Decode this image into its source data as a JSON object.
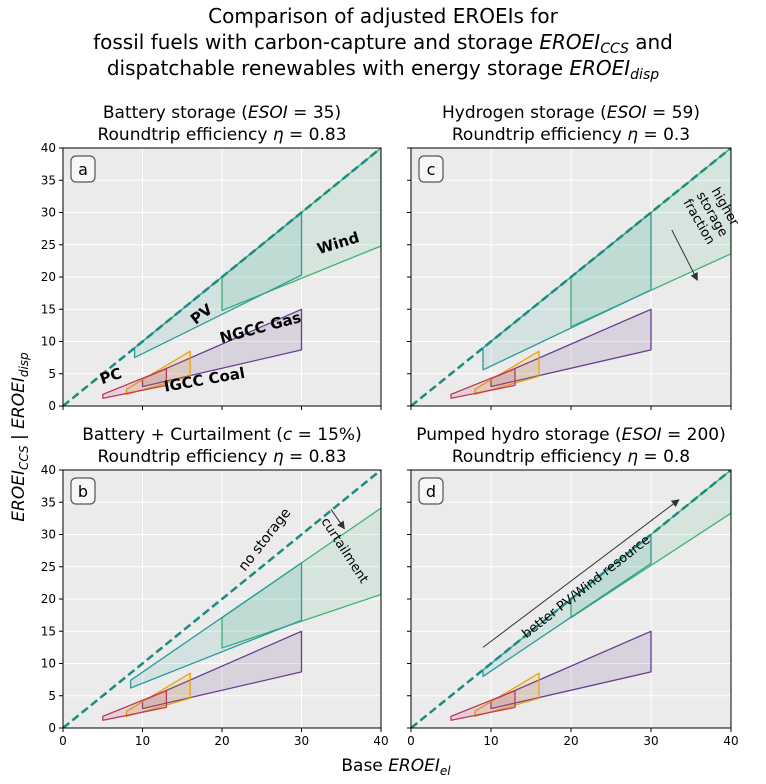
{
  "figure": {
    "title_lines": [
      "Comparison of adjusted EROEIs for",
      "fossil fuels with carbon-capture and storage EROEI_CCS and",
      "dispatchable renewables with energy storage EROEI_disp"
    ],
    "xlabel": "Base EROEI_el",
    "ylabel": "EROEI_CCS | EROEI_disp"
  },
  "colors": {
    "panel_bg": "#ebebeb",
    "grid": "#ffffff",
    "diagonal": "#1a8c80",
    "pv": "#2b9a9e",
    "wind": "#3cb371",
    "wind_label": "#1db34a",
    "ngcc": "#6a3d8f",
    "igcc": "#e8a317",
    "pc": "#c0395a",
    "pc_label": "#d95f0e"
  },
  "chart_data": [
    {
      "type": "area",
      "panel": "a",
      "title_line1": "Battery storage (ESOI = 35)",
      "title_line2": "Roundtrip efficiency η = 0.83",
      "xlim": [
        0,
        40
      ],
      "ylim": [
        0,
        40
      ],
      "xticks": [
        0,
        10,
        20,
        30,
        40
      ],
      "yticks": [
        0,
        5,
        10,
        15,
        20,
        25,
        30,
        35,
        40
      ],
      "regions": {
        "pv": [
          [
            9,
            9
          ],
          [
            30,
            30
          ],
          [
            30,
            20.3
          ],
          [
            9,
            7.5
          ]
        ],
        "wind": [
          [
            20,
            20
          ],
          [
            40,
            40
          ],
          [
            40,
            24.8
          ],
          [
            20,
            14.8
          ]
        ],
        "ngcc": [
          [
            10,
            4.2
          ],
          [
            30,
            15
          ],
          [
            30,
            8.7
          ],
          [
            10,
            3
          ]
        ],
        "igcc": [
          [
            8,
            2.6
          ],
          [
            16,
            8.5
          ],
          [
            16,
            4.6
          ],
          [
            8,
            1.8
          ]
        ],
        "pc": [
          [
            5,
            1.8
          ],
          [
            13,
            5.8
          ],
          [
            13,
            3.2
          ],
          [
            5,
            1.2
          ]
        ]
      },
      "labels": [
        {
          "text": "PV",
          "series": "pv"
        },
        {
          "text": "Wind",
          "series": "wind"
        },
        {
          "text": "NGCC Gas",
          "series": "ngcc"
        },
        {
          "text": "IGCC Coal",
          "series": "igcc"
        },
        {
          "text": "PC",
          "series": "pc"
        }
      ]
    },
    {
      "type": "area",
      "panel": "c",
      "title_line1": "Hydrogen storage (ESOI = 59)",
      "title_line2": "Roundtrip efficiency η = 0.3",
      "xlim": [
        0,
        40
      ],
      "ylim": [
        0,
        40
      ],
      "xticks": [
        0,
        10,
        20,
        30,
        40
      ],
      "yticks": [
        0,
        5,
        10,
        15,
        20,
        25,
        30,
        35,
        40
      ],
      "regions": {
        "pv": [
          [
            9,
            9
          ],
          [
            30,
            30
          ],
          [
            30,
            18
          ],
          [
            9,
            5.6
          ]
        ],
        "wind": [
          [
            20,
            20
          ],
          [
            40,
            40
          ],
          [
            40,
            23.6
          ],
          [
            20,
            12.3
          ]
        ],
        "ngcc": [
          [
            10,
            4.2
          ],
          [
            30,
            15
          ],
          [
            30,
            8.7
          ],
          [
            10,
            3
          ]
        ],
        "igcc": [
          [
            8,
            2.6
          ],
          [
            16,
            8.5
          ],
          [
            16,
            4.6
          ],
          [
            8,
            1.8
          ]
        ],
        "pc": [
          [
            5,
            1.8
          ],
          [
            13,
            5.8
          ],
          [
            13,
            3.2
          ],
          [
            5,
            1.2
          ]
        ]
      },
      "annotations": [
        {
          "text": "higher storage fraction",
          "lines": [
            "higher",
            "storage",
            "fraction"
          ]
        }
      ]
    },
    {
      "type": "area",
      "panel": "b",
      "title_line1": "Battery + Curtailment (c = 15%)",
      "title_line2": "Roundtrip efficiency η = 0.83",
      "xlim": [
        0,
        40
      ],
      "ylim": [
        0,
        40
      ],
      "xticks": [
        0,
        10,
        20,
        30,
        40
      ],
      "yticks": [
        0,
        5,
        10,
        15,
        20,
        25,
        30,
        35,
        40
      ],
      "regions": {
        "pv": [
          [
            8.5,
            7.4
          ],
          [
            30,
            25.6
          ],
          [
            30,
            16.7
          ],
          [
            8.5,
            6.2
          ]
        ],
        "wind": [
          [
            20,
            17.1
          ],
          [
            40,
            34.1
          ],
          [
            40,
            20.7
          ],
          [
            20,
            12.4
          ]
        ],
        "ngcc": [
          [
            10,
            4.2
          ],
          [
            30,
            15
          ],
          [
            30,
            8.7
          ],
          [
            10,
            3
          ]
        ],
        "igcc": [
          [
            8,
            2.6
          ],
          [
            16,
            8.5
          ],
          [
            16,
            4.6
          ],
          [
            8,
            1.8
          ]
        ],
        "pc": [
          [
            5,
            1.8
          ],
          [
            13,
            5.8
          ],
          [
            13,
            3.2
          ],
          [
            5,
            1.2
          ]
        ]
      },
      "annotations": [
        {
          "text": "no storage"
        },
        {
          "text": "curtailment"
        }
      ]
    },
    {
      "type": "area",
      "panel": "d",
      "title_line1": "Pumped hydro storage (ESOI = 200)",
      "title_line2": "Roundtrip efficiency η = 0.8",
      "xlim": [
        0,
        40
      ],
      "ylim": [
        0,
        40
      ],
      "xticks": [
        0,
        10,
        20,
        30,
        40
      ],
      "yticks": [
        0,
        5,
        10,
        15,
        20,
        25,
        30,
        35,
        40
      ],
      "regions": {
        "pv": [
          [
            9,
            9
          ],
          [
            30,
            30
          ],
          [
            30,
            25.5
          ],
          [
            9,
            8
          ]
        ],
        "wind": [
          [
            20,
            20
          ],
          [
            40,
            40
          ],
          [
            40,
            33.3
          ],
          [
            20,
            17.1
          ]
        ],
        "ngcc": [
          [
            10,
            4.2
          ],
          [
            30,
            15
          ],
          [
            30,
            8.7
          ],
          [
            10,
            3
          ]
        ],
        "igcc": [
          [
            8,
            2.6
          ],
          [
            16,
            8.5
          ],
          [
            16,
            4.6
          ],
          [
            8,
            1.8
          ]
        ],
        "pc": [
          [
            5,
            1.8
          ],
          [
            13,
            5.8
          ],
          [
            13,
            3.2
          ],
          [
            5,
            1.2
          ]
        ]
      },
      "annotations": [
        {
          "text": "better PV/Wind resource"
        }
      ]
    }
  ]
}
